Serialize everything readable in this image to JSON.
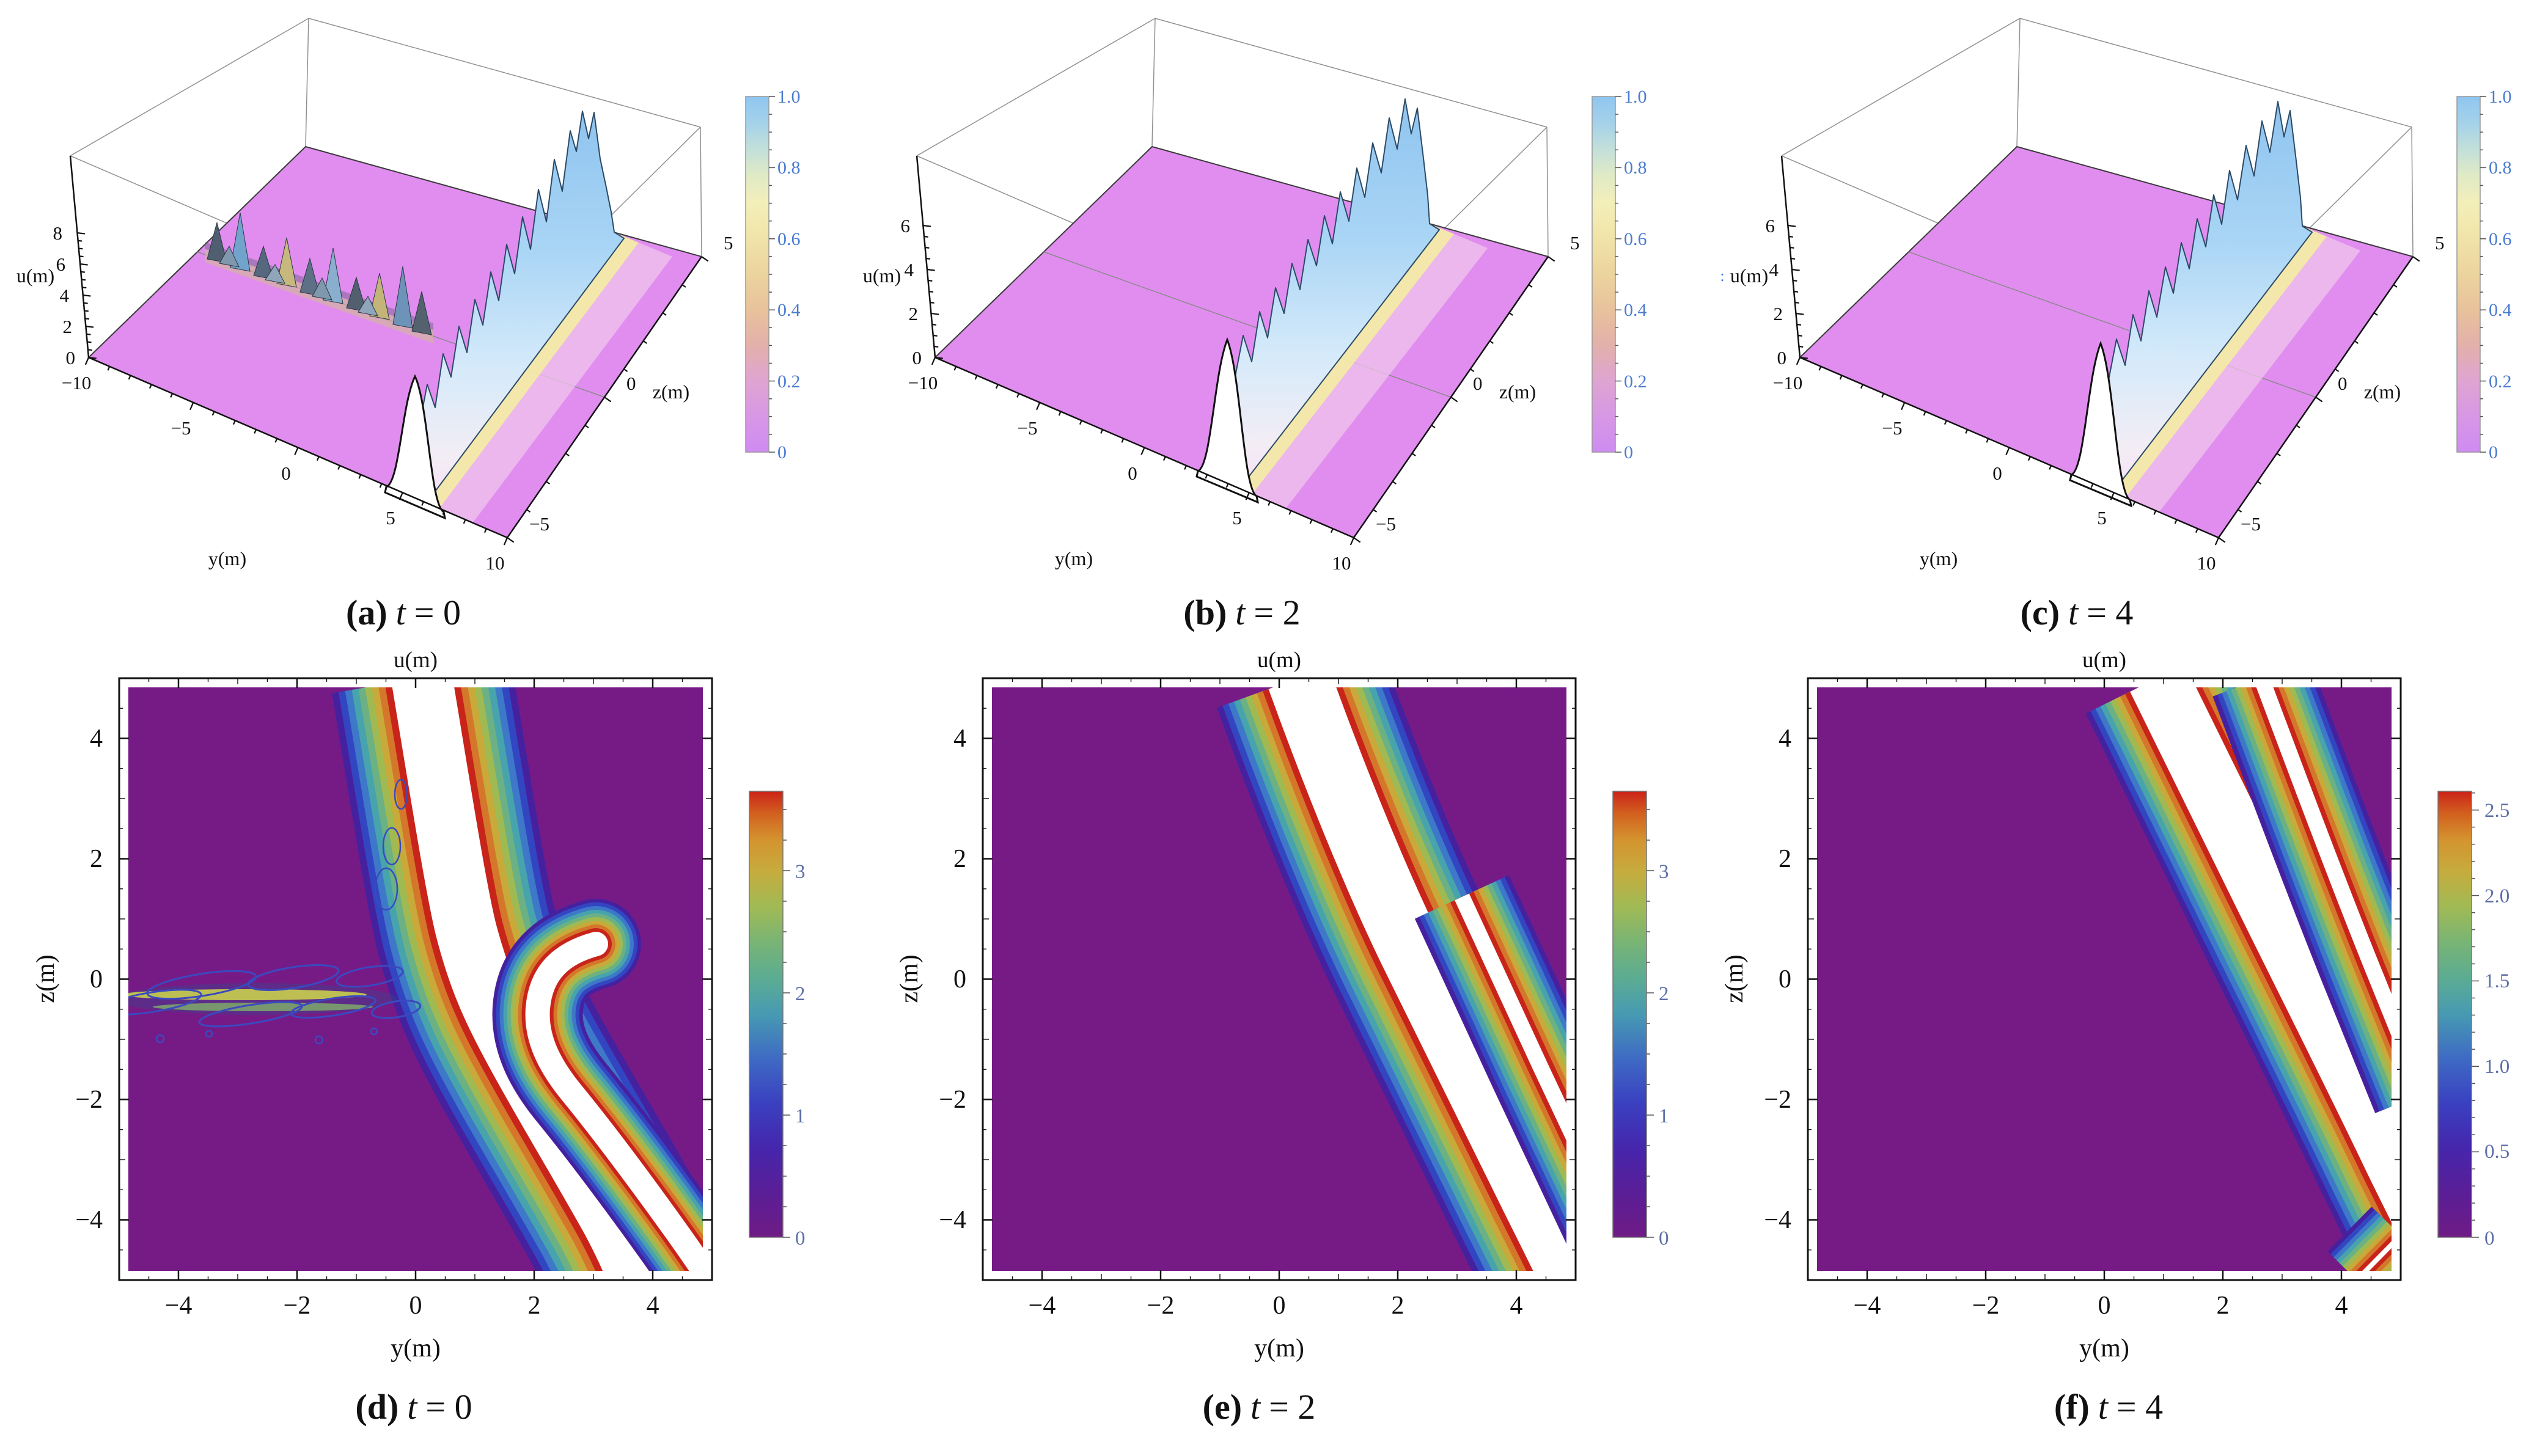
{
  "figure": {
    "background": "#ffffff",
    "description": "Six-panel soliton evolution figure: top row 3D surface plots u(y,z), bottom row contour plots, at times t=0,2,4"
  },
  "captions": [
    {
      "id": "a",
      "label": "(a)",
      "t": "t",
      "rest": "= 0"
    },
    {
      "id": "b",
      "label": "(b)",
      "t": "t",
      "rest": "= 2"
    },
    {
      "id": "c",
      "label": "(c)",
      "t": "t",
      "rest": "= 4"
    },
    {
      "id": "d",
      "label": "(d)",
      "t": "t",
      "rest": "= 0"
    },
    {
      "id": "e",
      "label": "(e)",
      "t": "t",
      "rest": "= 2"
    },
    {
      "id": "f",
      "label": "(f)",
      "t": "t",
      "rest": "= 4"
    }
  ],
  "panels3d": [
    {
      "u_label": "u(m)",
      "y_label": "y(m)",
      "z_label": "z(m)",
      "u_ticks": [
        "0",
        "2",
        "4",
        "6",
        "8"
      ],
      "y_ticks": [
        "−10",
        "−5",
        "0",
        "5",
        "10"
      ],
      "z_ticks": [
        "−5",
        "0",
        "5"
      ],
      "colorbar_ticks": [
        "0",
        "0.2",
        "0.4",
        "0.6",
        "0.8",
        "1.0"
      ]
    },
    {
      "u_label": "u(m)",
      "y_label": "y(m)",
      "z_label": "z(m)",
      "u_ticks": [
        "0",
        "2",
        "4",
        "6"
      ],
      "y_ticks": [
        "−10",
        "−5",
        "0",
        "5",
        "10"
      ],
      "z_ticks": [
        "−5",
        "0",
        "5"
      ],
      "colorbar_ticks": [
        "0",
        "0.2",
        "0.4",
        "0.6",
        "0.8",
        "1.0"
      ]
    },
    {
      "u_prefix": ":",
      "u_label": "u(m)",
      "y_label": "y(m)",
      "z_label": "z(m)",
      "u_ticks": [
        "0",
        "2",
        "4",
        "6"
      ],
      "y_ticks": [
        "−10",
        "−5",
        "0",
        "5",
        "10"
      ],
      "z_ticks": [
        "−5",
        "0",
        "5"
      ],
      "colorbar_ticks": [
        "0",
        "0.2",
        "0.4",
        "0.6",
        "0.8",
        "1.0"
      ]
    }
  ],
  "contours": [
    {
      "title": "u(m)",
      "x_label": "y(m)",
      "y_label": "z(m)",
      "x_ticks": [
        "−4",
        "−2",
        "0",
        "2",
        "4"
      ],
      "y_ticks": [
        "4",
        "2",
        "0",
        "−2",
        "−4"
      ],
      "colorbar_ticks": [
        "3",
        "2",
        "1",
        "0"
      ]
    },
    {
      "title": "u(m)",
      "x_label": "y(m)",
      "y_label": "z(m)",
      "x_ticks": [
        "−4",
        "−2",
        "0",
        "2",
        "4"
      ],
      "y_ticks": [
        "4",
        "2",
        "0",
        "−2",
        "−4"
      ],
      "colorbar_ticks": [
        "3",
        "2",
        "1",
        "0"
      ]
    },
    {
      "title": "u(m)",
      "x_label": "y(m)",
      "y_label": "z(m)",
      "x_ticks": [
        "−4",
        "−2",
        "0",
        "2",
        "4"
      ],
      "y_ticks": [
        "4",
        "2",
        "0",
        "−2",
        "−4"
      ],
      "colorbar_ticks": [
        "2.5",
        "2.0",
        "1.5",
        "1.0",
        "0.5",
        "0"
      ]
    }
  ],
  "colors": {
    "plane_magenta": "#E18DF0",
    "ridge_blue": "#8FC6F0",
    "ridge_glow_yellow": "#F3ECA6",
    "contour_background_purple": "#761B86",
    "band_rainbow_out_to_in": [
      "#46219F",
      "#3346C2",
      "#3E78C8",
      "#47A3AC",
      "#6BB184",
      "#9FBA52",
      "#C9A93A",
      "#D4772B",
      "#C8241A"
    ],
    "band_core": "#FFFFFF",
    "colorbar3d_label": "#4a7bd0",
    "colorbar_contour_label": "#5e6fa8"
  },
  "chart_data": [
    {
      "type": "heatmap",
      "subtype": "surface3d",
      "panel": "a",
      "time_label": "t = 0",
      "xlabel": "y(m)",
      "x_range": [
        -10,
        10
      ],
      "ylabel": "z(m)",
      "y_range": [
        -5,
        5
      ],
      "zlabel": "u(m)",
      "z_range": [
        0,
        8
      ],
      "z_ticks": [
        0,
        2,
        4,
        6,
        8
      ],
      "colorbar_range": [
        0,
        1.0
      ],
      "colorbar_ticks": [
        0,
        0.2,
        0.4,
        0.6,
        0.8,
        1.0
      ],
      "features": "flat plane u≈0 with tall line-soliton ridge near y≈5 spanning z=-5..5, plus oscillatory breather/lump train along z≈0 for y<2"
    },
    {
      "type": "heatmap",
      "subtype": "surface3d",
      "panel": "b",
      "time_label": "t = 2",
      "xlabel": "y(m)",
      "x_range": [
        -10,
        10
      ],
      "ylabel": "z(m)",
      "y_range": [
        -5,
        5
      ],
      "zlabel": "u(m)",
      "z_range": [
        0,
        6
      ],
      "z_ticks": [
        0,
        2,
        4,
        6
      ],
      "colorbar_range": [
        0,
        1.0
      ],
      "colorbar_ticks": [
        0,
        0.2,
        0.4,
        0.6,
        0.8,
        1.0
      ],
      "features": "clean single line-soliton ridge near y≈4 spanning z, flat plane elsewhere"
    },
    {
      "type": "heatmap",
      "subtype": "surface3d",
      "panel": "c",
      "time_label": "t = 4",
      "xlabel": "y(m)",
      "x_range": [
        -10,
        10
      ],
      "ylabel": "z(m)",
      "y_range": [
        -5,
        5
      ],
      "zlabel": "u(m)",
      "z_range": [
        0,
        6
      ],
      "z_ticks": [
        0,
        2,
        4,
        6
      ],
      "colorbar_range": [
        0,
        1.0
      ],
      "colorbar_ticks": [
        0,
        0.2,
        0.4,
        0.6,
        0.8,
        1.0
      ],
      "features": "clean single line-soliton ridge near y≈4.5 spanning z, flat plane elsewhere"
    },
    {
      "type": "heatmap",
      "subtype": "contour",
      "panel": "d",
      "time_label": "t = 0",
      "xlabel": "y(m)",
      "x_range": [
        -5,
        5
      ],
      "ylabel": "z(m)",
      "y_range": [
        -5,
        5
      ],
      "colorbar_range": [
        0,
        3.65
      ],
      "colorbar_ticks": [
        0,
        1,
        2,
        3
      ],
      "features": "kinked white soliton band from (y≈0,z=5) bending at z≈0.4 to (y≈3.6,z=-5) with rainbow fringes; second band to lower right; oscillatory blue contour streaks along z≈-0.3 for y<0"
    },
    {
      "type": "heatmap",
      "subtype": "contour",
      "panel": "e",
      "time_label": "t = 2",
      "xlabel": "y(m)",
      "x_range": [
        -5,
        5
      ],
      "ylabel": "z(m)",
      "y_range": [
        -5,
        5
      ],
      "colorbar_range": [
        0,
        3.6
      ],
      "colorbar_ticks": [
        0,
        1,
        2,
        3
      ],
      "features": "smooth curved white soliton band from (y≈0.3,z=5) to bottom-right corner, with narrower parallel band exiting the right edge near z≈-2..-4"
    },
    {
      "type": "heatmap",
      "subtype": "contour",
      "panel": "f",
      "time_label": "t = 4",
      "xlabel": "y(m)",
      "x_range": [
        -5,
        5
      ],
      "ylabel": "z(m)",
      "y_range": [
        -5,
        5
      ],
      "colorbar_range": [
        0,
        2.6
      ],
      "colorbar_ticks": [
        0,
        0.5,
        1.0,
        1.5,
        2.0,
        2.5
      ],
      "features": "two straight parallel diagonal white soliton bands (slope ≈ -2) from top edge to bottom-right, red fringe tip at bottom-right corner"
    }
  ]
}
